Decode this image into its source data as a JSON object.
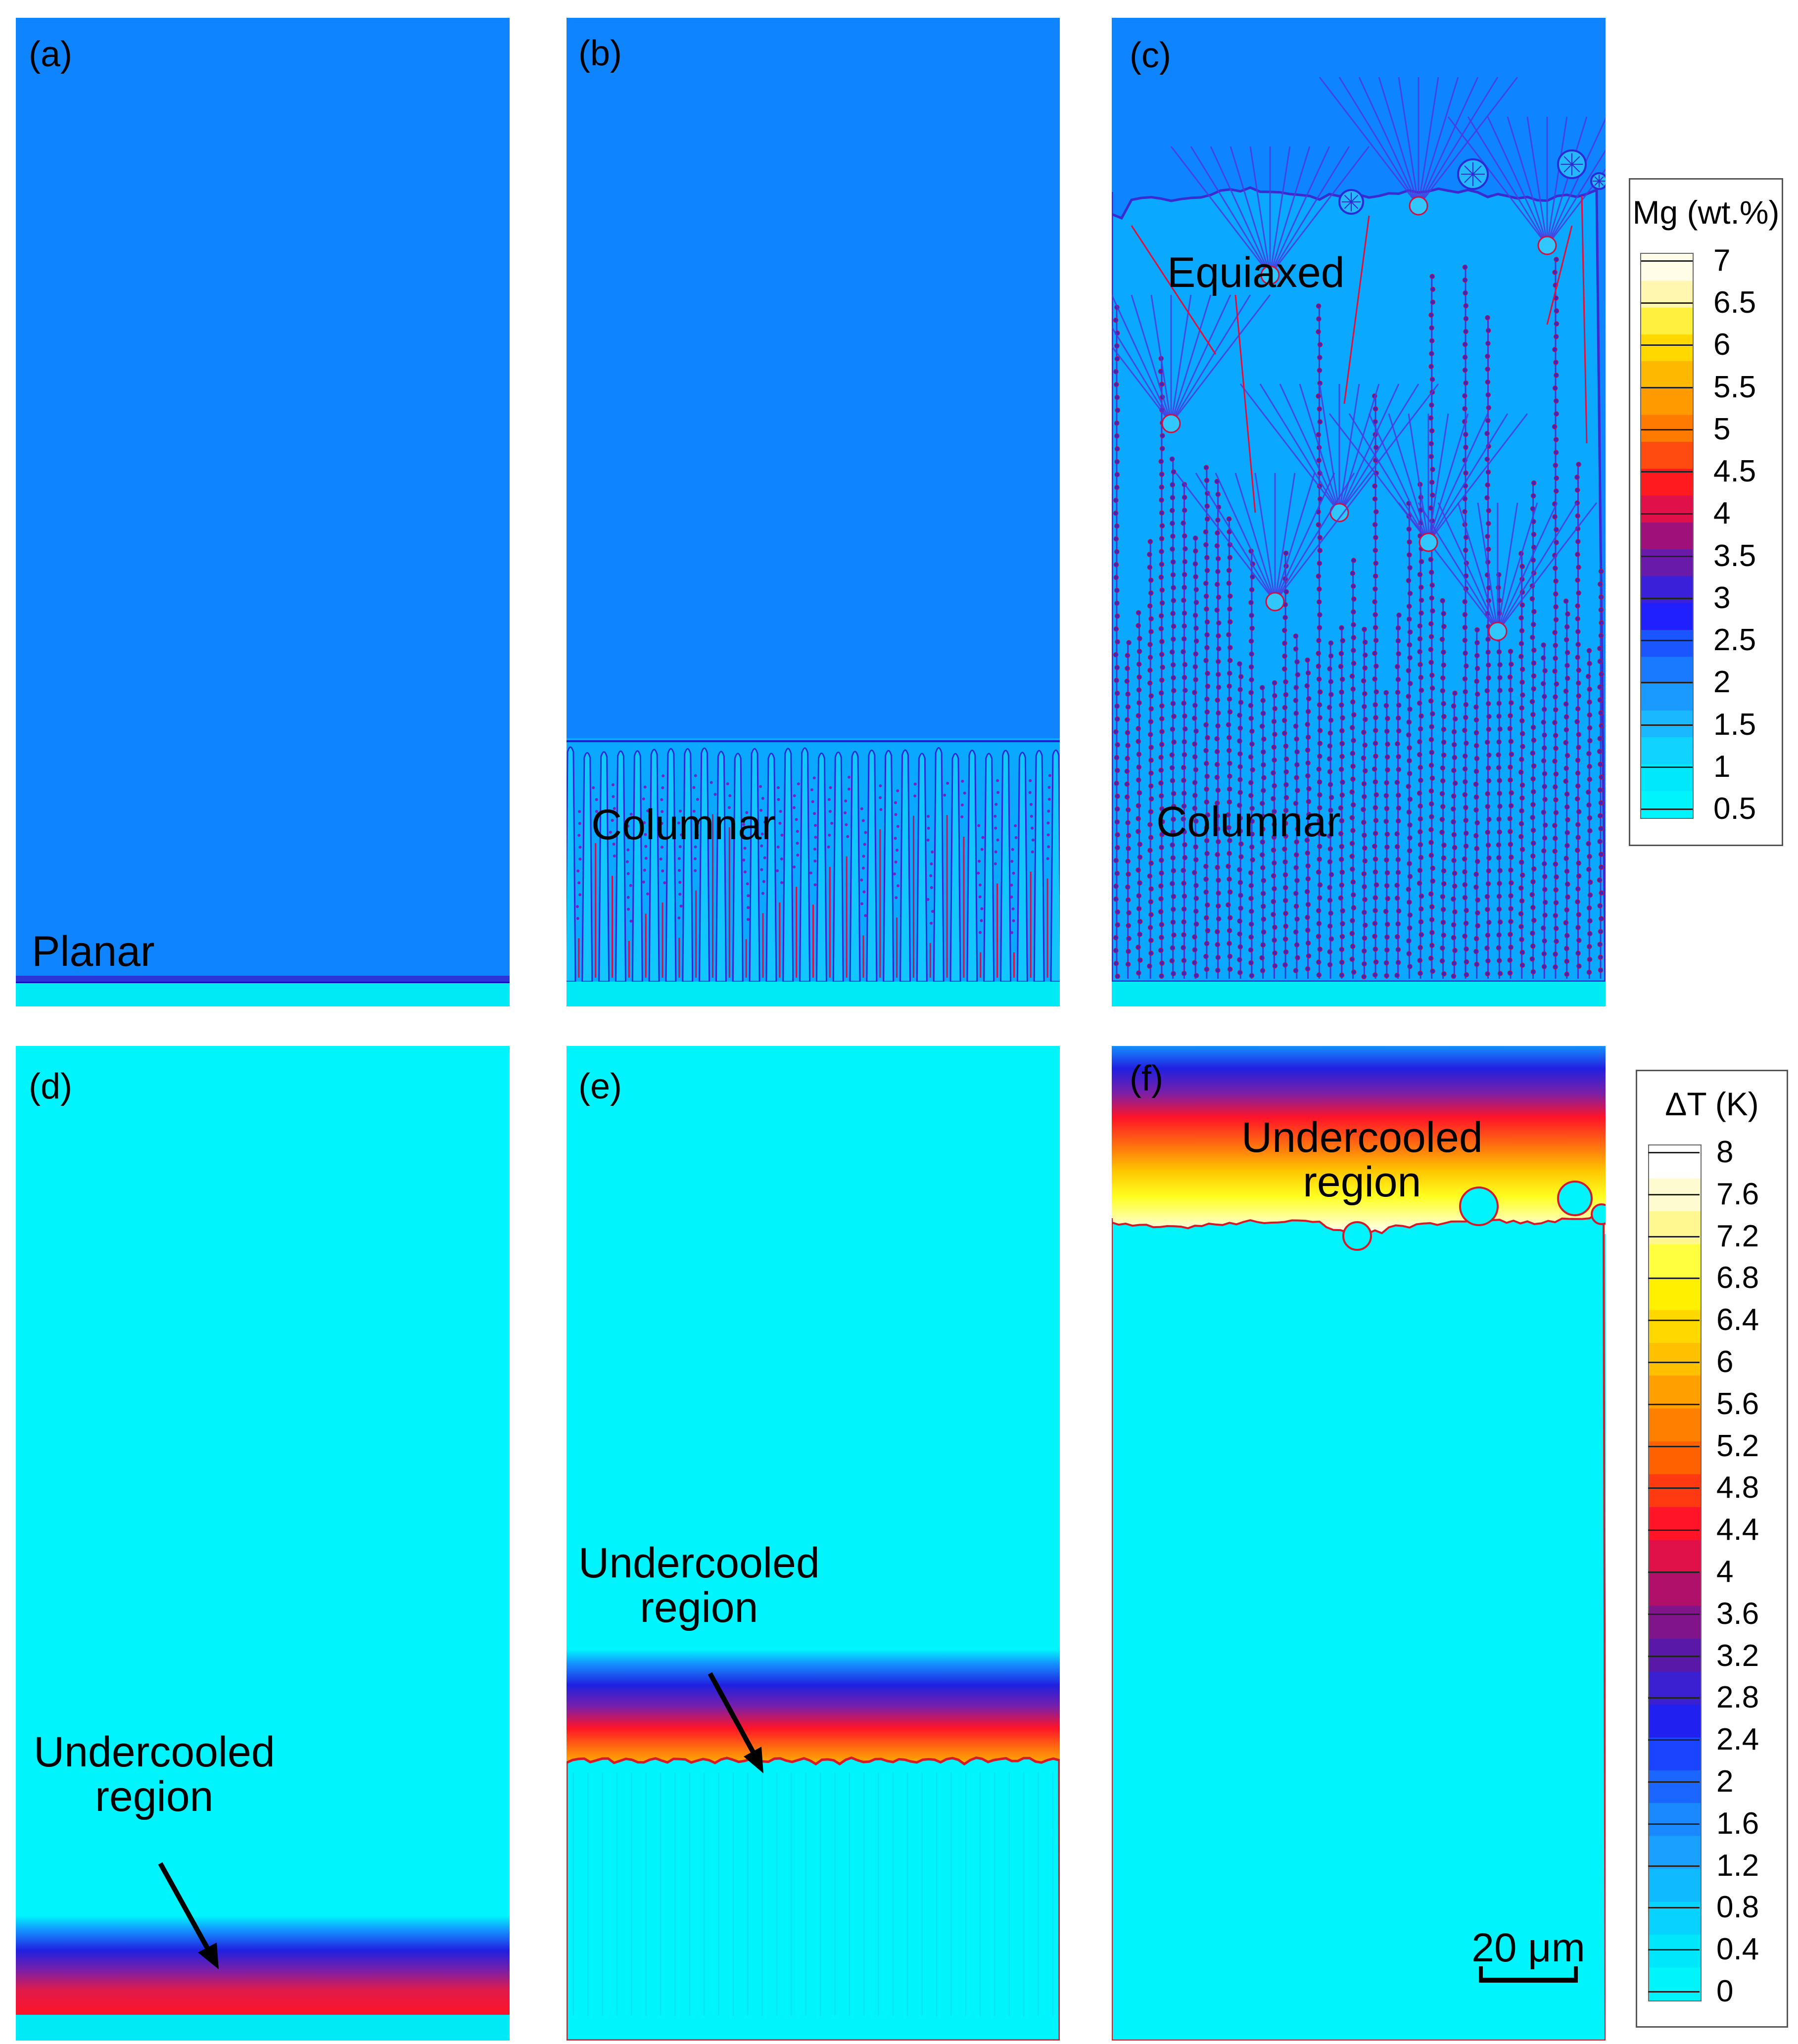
{
  "panels": {
    "a": {
      "label": "(a)",
      "annotations": [
        "Planar"
      ]
    },
    "b": {
      "label": "(b)",
      "annotations": [
        "Columnar"
      ]
    },
    "c": {
      "label": "(c)",
      "annotations": [
        "Equiaxed",
        "Columnar"
      ]
    },
    "d": {
      "label": "(d)",
      "annotations": [
        "Undercooled",
        "region"
      ]
    },
    "e": {
      "label": "(e)",
      "annotations": [
        "Undercooled",
        "region"
      ]
    },
    "f": {
      "label": "(f)",
      "annotations": [
        "Undercooled",
        "region"
      ]
    }
  },
  "legend_mg": {
    "title": "Mg (wt.%)",
    "ticks": [
      "7",
      "6.5",
      "6",
      "5.5",
      "5",
      "4.5",
      "4",
      "3.5",
      "3",
      "2.5",
      "2",
      "1.5",
      "1",
      "0.5"
    ]
  },
  "legend_dt": {
    "title": "ΔT (K)",
    "ticks": [
      "8",
      "7.6",
      "7.2",
      "6.8",
      "6.4",
      "6",
      "5.6",
      "5.2",
      "4.8",
      "4.4",
      "4",
      "3.6",
      "3.2",
      "2.8",
      "2.4",
      "2",
      "1.6",
      "1.2",
      "0.8",
      "0.4",
      "0"
    ]
  },
  "scale_bar": {
    "label": "20 μm"
  },
  "colors": {
    "liquid_mg": "#0f84ff",
    "solid": "#00eaf6",
    "cyan": "#00f4fb",
    "interface": "#3030e0",
    "segregation": "#e0103a"
  }
}
